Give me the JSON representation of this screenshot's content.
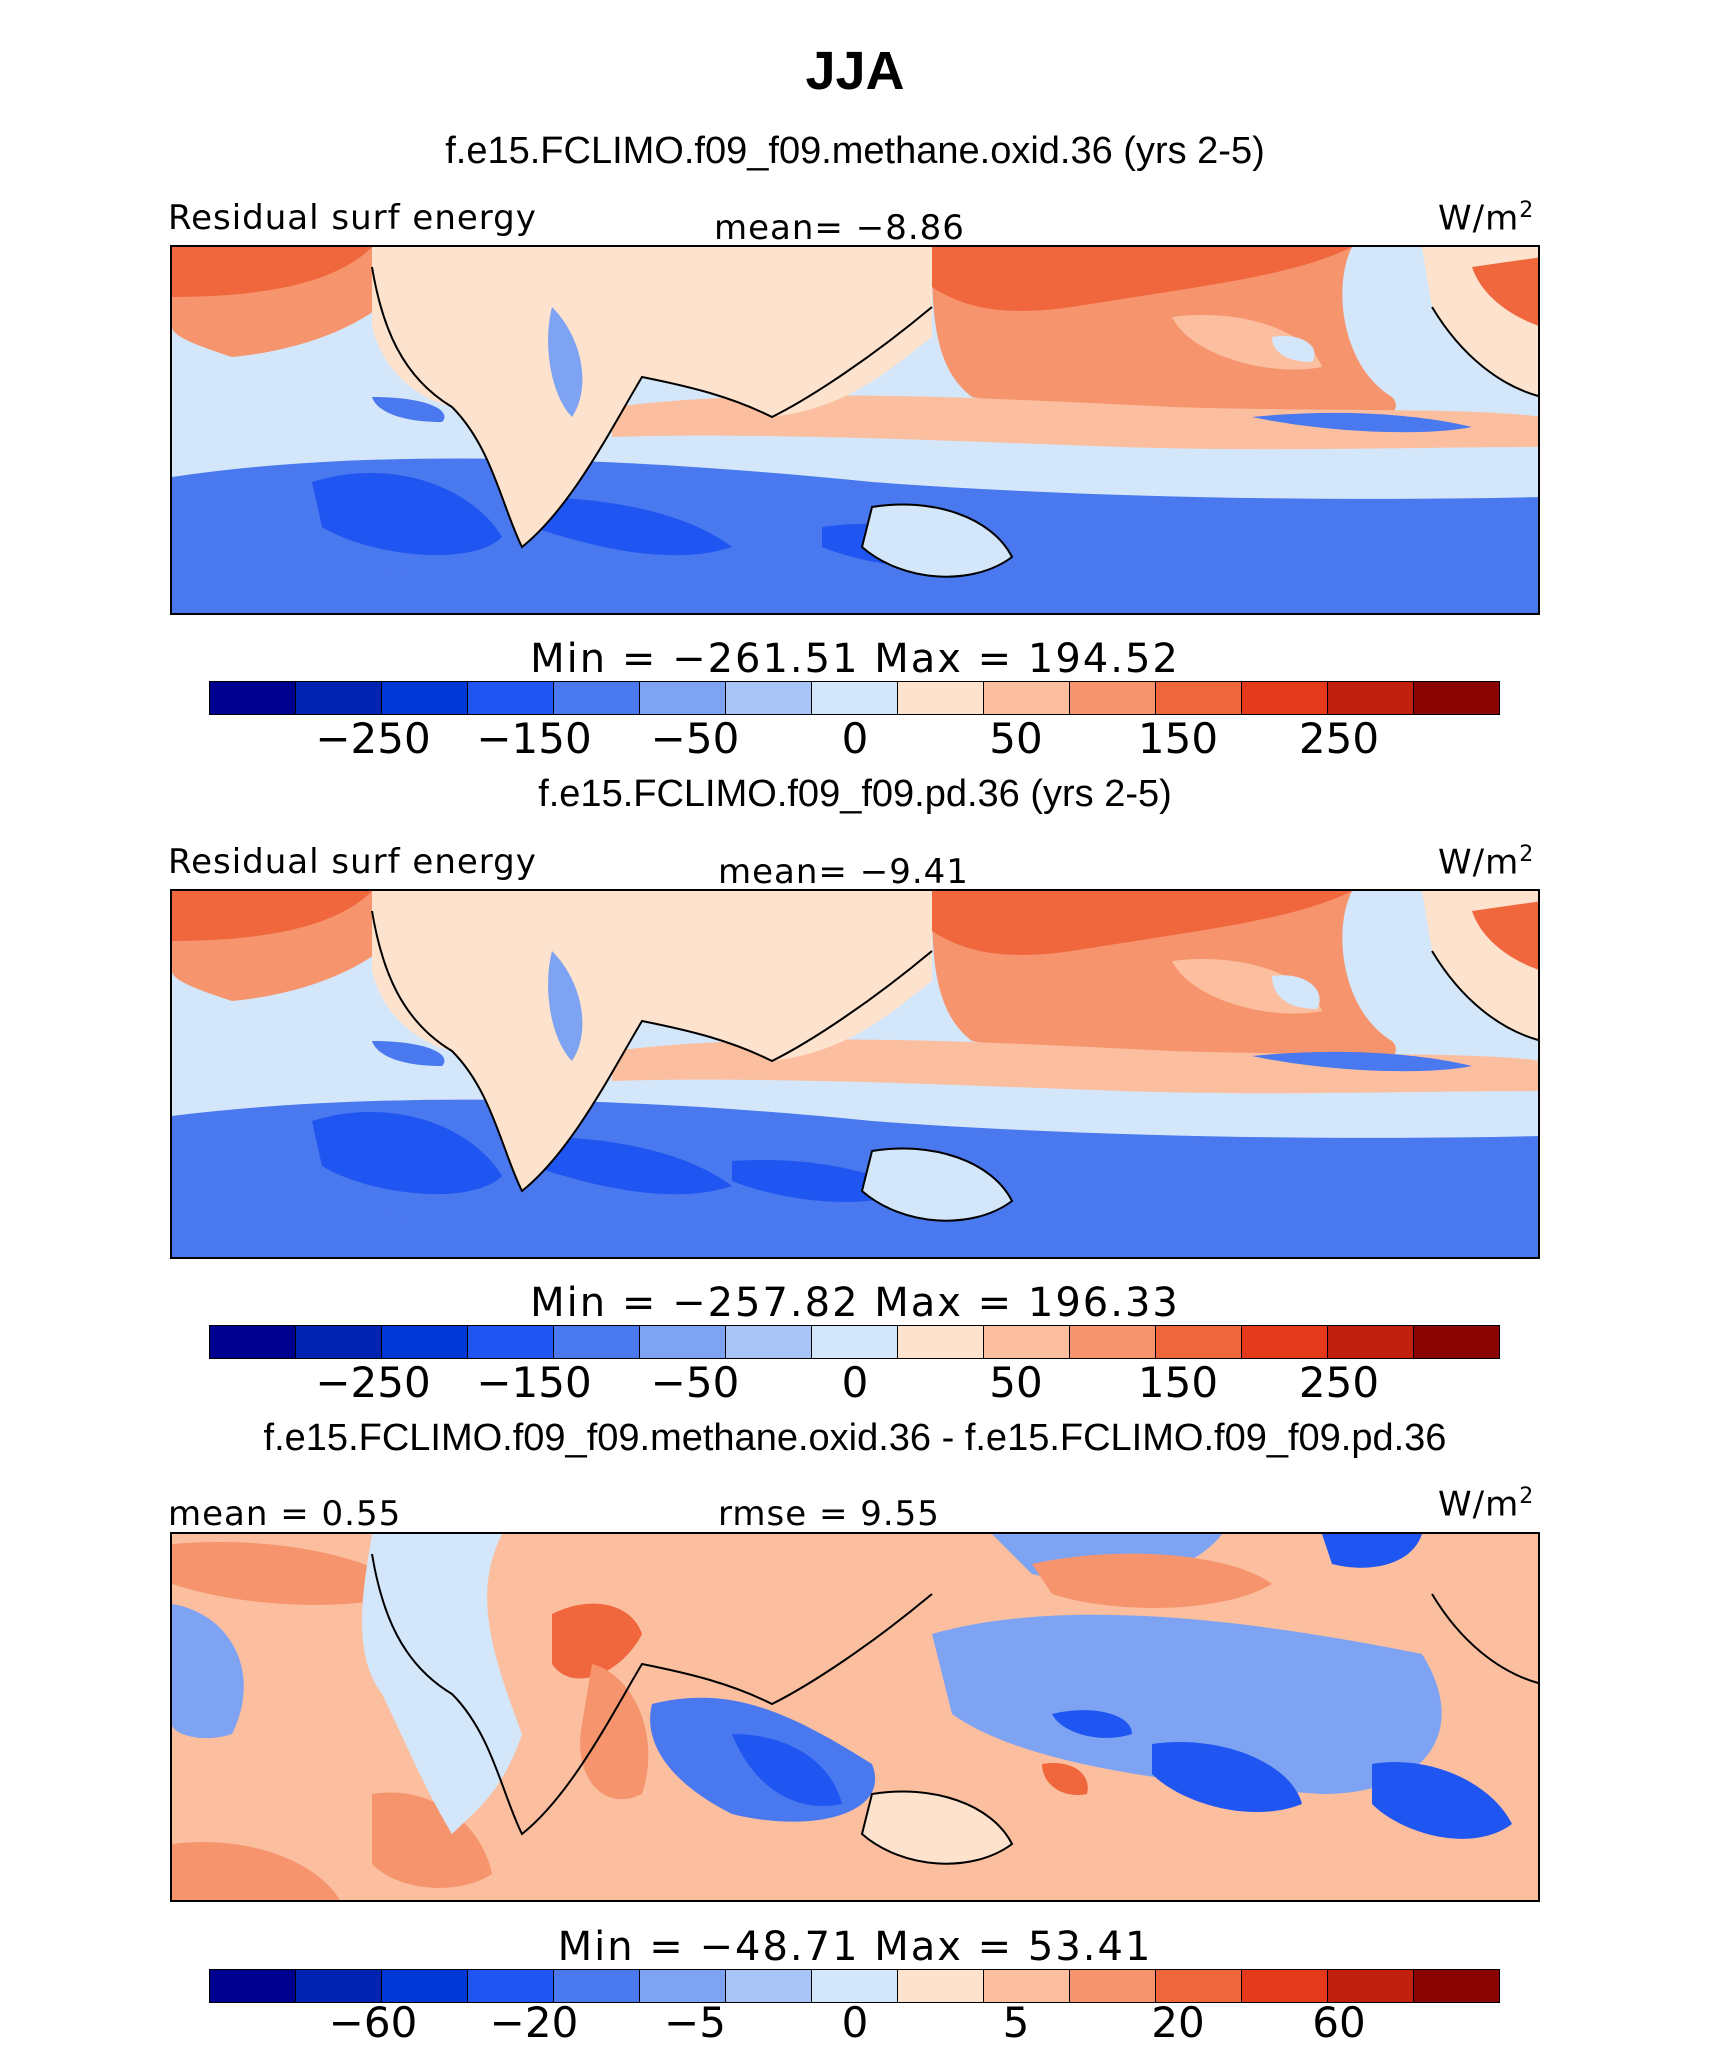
{
  "title": "JJA",
  "panels": [
    {
      "case": "f.e15.FCLIMO.f09_f09.methane.oxid.36 (yrs 2-5)",
      "left_label": "Residual surf energy",
      "center_label": "mean=   −8.86",
      "units": "W/m",
      "units_sup": "2",
      "minmax": "Min = −261.51  Max = 194.52",
      "ticks": [
        "−250",
        "−150",
        "−50",
        "0",
        "50",
        "150",
        "250"
      ]
    },
    {
      "case": "f.e15.FCLIMO.f09_f09.pd.36 (yrs 2-5)",
      "left_label": "Residual surf energy",
      "center_label": "mean=   −9.41",
      "units": "W/m",
      "units_sup": "2",
      "minmax": "Min = −257.82  Max = 196.33",
      "ticks": [
        "−250",
        "−150",
        "−50",
        "0",
        "50",
        "150",
        "250"
      ]
    },
    {
      "case": "f.e15.FCLIMO.f09_f09.methane.oxid.36 - f.e15.FCLIMO.f09_f09.pd.36",
      "left_label": "mean =    0.55",
      "center_label": "rmse =    9.55",
      "units": "W/m",
      "units_sup": "2",
      "minmax": "Min = −48.71  Max =   53.41",
      "ticks": [
        "−60",
        "−20",
        "−5",
        "0",
        "5",
        "20",
        "60"
      ]
    }
  ],
  "colorbar_colors": [
    "#00008f",
    "#0022b0",
    "#0038d8",
    "#1f55f0",
    "#4a78ee",
    "#7ea3f2",
    "#a9c5f7",
    "#d4e6fa",
    "#fde2cd",
    "#fbbfa0",
    "#f6956d",
    "#f0663d",
    "#e4391a",
    "#c2200e",
    "#8a0404"
  ],
  "colors": {
    "land_neutral": "#fde2cd",
    "ocean_warm": "#f6956d",
    "ocean_hot": "#f0663d",
    "ocean_cool": "#7ea3f2",
    "ocean_cold": "#1f55f0",
    "coast_line": "#000000"
  }
}
